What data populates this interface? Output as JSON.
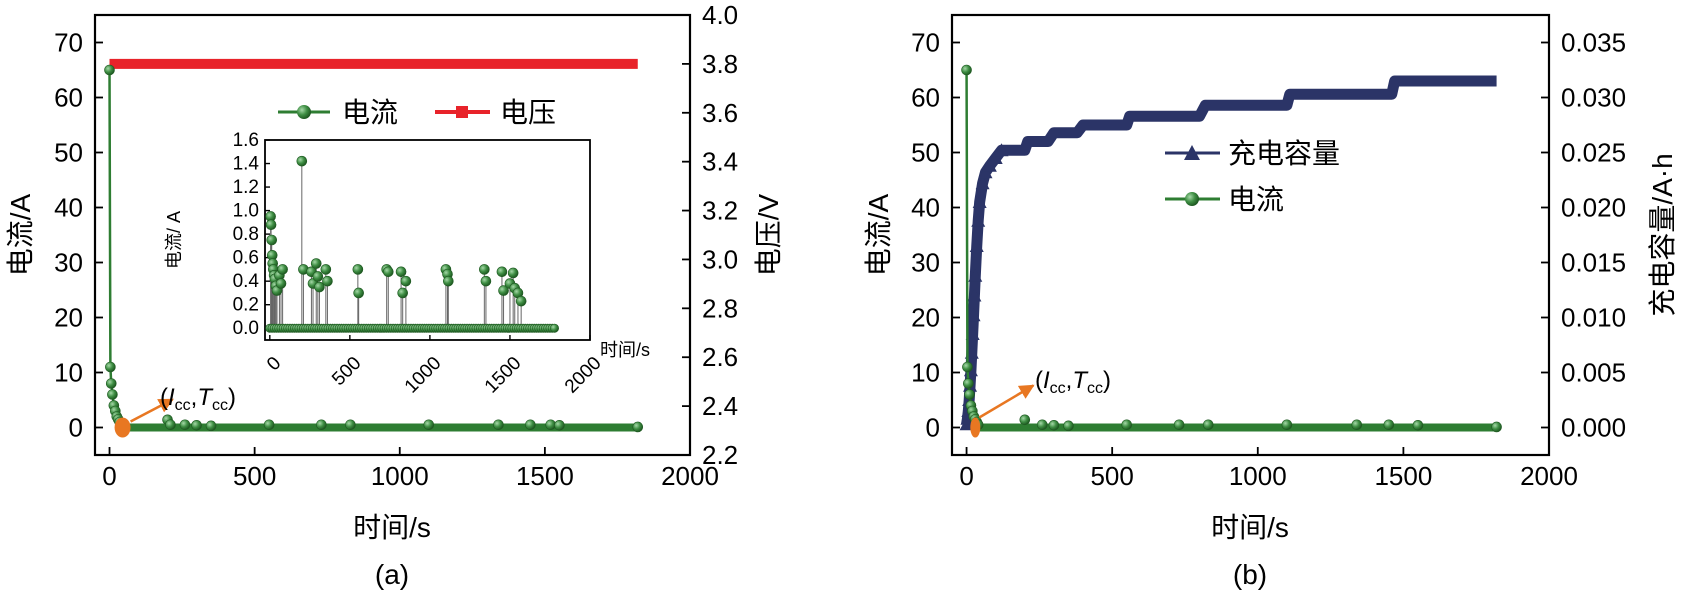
{
  "chart_data": [
    {
      "panel_label": "(a)",
      "type": "line",
      "xlabel": "时间/s",
      "ylabel": "电流/A",
      "y2label": "电压/V",
      "xlim": [
        -50,
        2000
      ],
      "ylim": [
        -5,
        75
      ],
      "y2lim": [
        2.2,
        4.0
      ],
      "xticks": [
        "0",
        "500",
        "1000",
        "1500",
        "2000"
      ],
      "yticks": [
        "0",
        "10",
        "20",
        "30",
        "40",
        "50",
        "60",
        "70"
      ],
      "y2ticks": [
        "2.2",
        "2.4",
        "2.6",
        "2.8",
        "3.0",
        "3.2",
        "3.4",
        "3.6",
        "3.8",
        "4.0"
      ],
      "legend": [
        "电流",
        "电压"
      ],
      "annotation": {
        "I": "I",
        "I_sub": "cc",
        "sep": ",",
        "T": "T",
        "T_sub": "cc",
        "open": "(",
        "close": ")"
      },
      "series": [
        {
          "name": "电流",
          "axis": "left",
          "color": "#2e7d32",
          "x": [
            0,
            3,
            6,
            10,
            15,
            20,
            25,
            30,
            35,
            40,
            200,
            210,
            260,
            300,
            350,
            550,
            730,
            830,
            1100,
            1340,
            1450,
            1520,
            1550,
            1820
          ],
          "y": [
            65,
            11,
            8,
            6,
            4,
            3,
            2,
            1.5,
            1,
            0.5,
            1.4,
            0.5,
            0.5,
            0.4,
            0.3,
            0.5,
            0.5,
            0.5,
            0.5,
            0.5,
            0.5,
            0.5,
            0.4,
            0.1
          ]
        },
        {
          "name": "电压",
          "axis": "right",
          "color": "#e8232a",
          "x": [
            0,
            1820
          ],
          "y": [
            3.8,
            3.8
          ]
        }
      ],
      "inset": {
        "xlabel": "时间/s",
        "ylabel": "电流/ A",
        "xlim": [
          -30,
          2000
        ],
        "ylim": [
          -0.1,
          1.6
        ],
        "xticks": [
          "0",
          "500",
          "1000",
          "1500",
          "2000"
        ],
        "yticks": [
          "0.0",
          "0.2",
          "0.4",
          "0.6",
          "0.8",
          "1.0",
          "1.2",
          "1.4",
          "1.6"
        ],
        "baseline": {
          "x_start": 0,
          "x_end": 1780,
          "y": 0
        },
        "stems": [
          {
            "x": 5,
            "y": 0.95
          },
          {
            "x": 8,
            "y": 0.88
          },
          {
            "x": 12,
            "y": 0.75
          },
          {
            "x": 15,
            "y": 0.62
          },
          {
            "x": 18,
            "y": 0.55
          },
          {
            "x": 22,
            "y": 0.5
          },
          {
            "x": 27,
            "y": 0.45
          },
          {
            "x": 32,
            "y": 0.42
          },
          {
            "x": 38,
            "y": 0.36
          },
          {
            "x": 45,
            "y": 0.32
          },
          {
            "x": 60,
            "y": 0.45
          },
          {
            "x": 70,
            "y": 0.38
          },
          {
            "x": 80,
            "y": 0.5
          },
          {
            "x": 200,
            "y": 1.42
          },
          {
            "x": 210,
            "y": 0.5
          },
          {
            "x": 260,
            "y": 0.48
          },
          {
            "x": 270,
            "y": 0.38
          },
          {
            "x": 290,
            "y": 0.55
          },
          {
            "x": 300,
            "y": 0.44
          },
          {
            "x": 310,
            "y": 0.35
          },
          {
            "x": 350,
            "y": 0.5
          },
          {
            "x": 360,
            "y": 0.4
          },
          {
            "x": 550,
            "y": 0.5
          },
          {
            "x": 555,
            "y": 0.3
          },
          {
            "x": 730,
            "y": 0.5
          },
          {
            "x": 740,
            "y": 0.48
          },
          {
            "x": 820,
            "y": 0.48
          },
          {
            "x": 830,
            "y": 0.3
          },
          {
            "x": 850,
            "y": 0.4
          },
          {
            "x": 1100,
            "y": 0.5
          },
          {
            "x": 1110,
            "y": 0.46
          },
          {
            "x": 1115,
            "y": 0.4
          },
          {
            "x": 1340,
            "y": 0.5
          },
          {
            "x": 1350,
            "y": 0.4
          },
          {
            "x": 1450,
            "y": 0.48
          },
          {
            "x": 1460,
            "y": 0.32
          },
          {
            "x": 1500,
            "y": 0.38
          },
          {
            "x": 1520,
            "y": 0.47
          },
          {
            "x": 1530,
            "y": 0.34
          },
          {
            "x": 1550,
            "y": 0.3
          },
          {
            "x": 1570,
            "y": 0.23
          }
        ]
      }
    },
    {
      "panel_label": "(b)",
      "type": "line",
      "xlabel": "时间/s",
      "ylabel": "电流/A",
      "y2label": "充电容量/A·h",
      "xlim": [
        -50,
        2000
      ],
      "ylim": [
        -5,
        75
      ],
      "y2lim": [
        -0.0025,
        0.0375
      ],
      "xticks": [
        "0",
        "500",
        "1000",
        "1500",
        "2000"
      ],
      "yticks": [
        "0",
        "10",
        "20",
        "30",
        "40",
        "50",
        "60",
        "70"
      ],
      "y2ticks": [
        "0.000",
        "0.005",
        "0.010",
        "0.015",
        "0.020",
        "0.025",
        "0.030",
        "0.035"
      ],
      "legend": [
        "充电容量",
        "电流"
      ],
      "annotation": {
        "I": "I",
        "I_sub": "cc",
        "sep": ",",
        "T": "T",
        "T_sub": "cc",
        "open": "(",
        "close": ")"
      },
      "series": [
        {
          "name": "充电容量",
          "axis": "right",
          "color": "#2b3467",
          "x": [
            0,
            3,
            6,
            9,
            12,
            15,
            18,
            21,
            24,
            27,
            30,
            35,
            40,
            45,
            55,
            65,
            80,
            100,
            120,
            200,
            210,
            280,
            300,
            380,
            400,
            550,
            560,
            800,
            820,
            1100,
            1110,
            1460,
            1470,
            1820
          ],
          "y": [
            0.0003,
            0.0008,
            0.0015,
            0.0025,
            0.0038,
            0.0052,
            0.0068,
            0.0085,
            0.0102,
            0.012,
            0.0138,
            0.0165,
            0.0188,
            0.0205,
            0.0222,
            0.0232,
            0.0238,
            0.0245,
            0.0252,
            0.0252,
            0.026,
            0.026,
            0.0268,
            0.0268,
            0.0275,
            0.0275,
            0.0283,
            0.0283,
            0.0293,
            0.0293,
            0.0303,
            0.0303,
            0.0315,
            0.0315
          ]
        },
        {
          "name": "电流",
          "axis": "left",
          "color": "#2e7d32",
          "x": [
            0,
            3,
            6,
            10,
            15,
            20,
            25,
            30,
            35,
            40,
            200,
            260,
            300,
            350,
            550,
            730,
            830,
            1100,
            1340,
            1450,
            1550,
            1820
          ],
          "y": [
            65,
            11,
            8,
            6,
            4,
            3,
            2,
            1.5,
            1,
            0.5,
            1.4,
            0.5,
            0.4,
            0.3,
            0.5,
            0.5,
            0.5,
            0.5,
            0.5,
            0.5,
            0.4,
            0.1
          ]
        }
      ]
    }
  ],
  "colors": {
    "current": "#2e7d32",
    "voltage": "#e8232a",
    "capacity": "#2b3467",
    "arrow": "#e87722",
    "frame": "#000000"
  }
}
